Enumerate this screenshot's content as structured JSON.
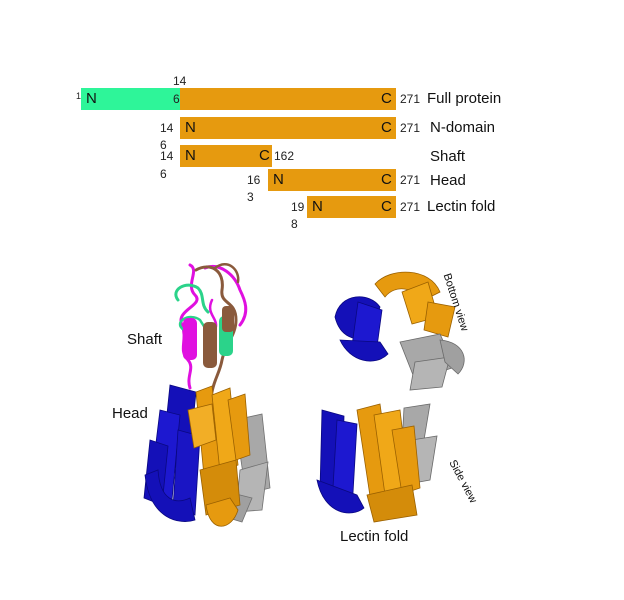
{
  "colors": {
    "orange": "#E69A0F",
    "green": "#2EF599",
    "blue": "#1410B8",
    "gray": "#A0A0A0",
    "magenta": "#E010E0",
    "brown": "#8A5A3C",
    "teal_green": "#2BD38A"
  },
  "domains": {
    "full": {
      "n_label": "N",
      "c_label": "C",
      "start_small": "1",
      "split_top": "14",
      "split_bottom": "6",
      "end": "271",
      "name": "Full protein"
    },
    "ndomain": {
      "n_label": "N",
      "c_label": "C",
      "start_top": "14",
      "start_bottom": "6",
      "end": "271",
      "name": "N-domain"
    },
    "shaft": {
      "n_label": "N",
      "c_label": "C",
      "start_top": "14",
      "start_bottom": "6",
      "end": "162",
      "name": "Shaft"
    },
    "head": {
      "n_label": "N",
      "c_label": "C",
      "start_top": "16",
      "start_bottom": "3",
      "end": "271",
      "name": "Head"
    },
    "lectin": {
      "n_label": "N",
      "c_label": "C",
      "start_top": "19",
      "start_bottom": "8",
      "end": "271",
      "name": "Lectin fold"
    }
  },
  "structure_labels": {
    "shaft": "Shaft",
    "head": "Head",
    "bottom_view": "Bottom view",
    "side_view": "Side view",
    "lectin_fold": "Lectin fold"
  }
}
